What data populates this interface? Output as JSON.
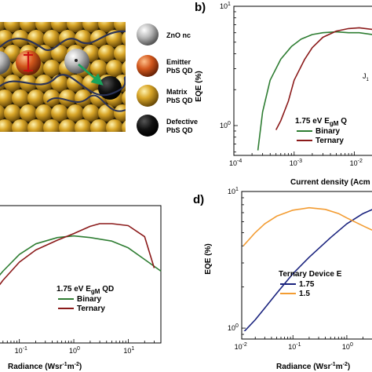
{
  "panel_letters": {
    "b": "b)",
    "d": "d)"
  },
  "schematic": {
    "legend": [
      {
        "label": "ZnO nc",
        "color": "#b8b8b8"
      },
      {
        "label": "Emitter PbS QD",
        "label_lines": [
          "Emitter",
          "PbS QD"
        ],
        "color": "#c9561f"
      },
      {
        "label": "Matrix PbS QD",
        "label_lines": [
          "Matrix",
          "PbS QD"
        ],
        "color": "#d4a52a"
      },
      {
        "label": "Defective PbS QD",
        "label_lines": [
          "Defective",
          "PbS QD"
        ],
        "color": "#111111"
      }
    ]
  },
  "chart_data": [
    {
      "id": "b",
      "type": "line",
      "xlabel": "Current density (Acm",
      "ylabel": "EQE (%)",
      "xscale": "log",
      "yscale": "log",
      "xticks": [
        {
          "value": 0.0001,
          "base": "10",
          "exp": "-4"
        },
        {
          "value": 0.001,
          "base": "10",
          "exp": "-3"
        },
        {
          "value": 0.01,
          "base": "10",
          "exp": "-2"
        }
      ],
      "yticks": [
        {
          "value": 1,
          "base": "10",
          "exp": "0"
        },
        {
          "value": 10,
          "base": "10",
          "exp": "1"
        }
      ],
      "legend_title": {
        "main": "1.75 eV E",
        "sub": "gM",
        "tail": " Q"
      },
      "legend_labels": [
        "Binary",
        "Ternary"
      ],
      "annotation": {
        "main": "J",
        "sub": "1"
      },
      "series": [
        {
          "name": "Binary",
          "color": "#2e7d32",
          "x": [
            0.00025,
            0.0003,
            0.0004,
            0.0006,
            0.0009,
            0.0013,
            0.002,
            0.003,
            0.005,
            0.008,
            0.012,
            0.02,
            0.03
          ],
          "y": [
            0.62,
            1.3,
            2.4,
            3.6,
            4.6,
            5.3,
            5.8,
            6.0,
            6.1,
            6.0,
            6.0,
            5.8,
            5.5
          ]
        },
        {
          "name": "Ternary",
          "color": "#8b1a1a",
          "x": [
            0.0005,
            0.0006,
            0.0008,
            0.001,
            0.0015,
            0.002,
            0.003,
            0.005,
            0.008,
            0.012,
            0.02,
            0.03
          ],
          "y": [
            0.92,
            1.1,
            1.6,
            2.4,
            3.6,
            4.5,
            5.5,
            6.2,
            6.5,
            6.6,
            6.4,
            6.0
          ]
        }
      ]
    },
    {
      "id": "c",
      "type": "line",
      "xlabel": "Radiance (Wsr",
      "xlabel_parts": {
        "main": "Radiance (Wsr",
        "sup1": "-1",
        "mid": "m",
        "sup2": "-2",
        "end": ")"
      },
      "xscale": "log",
      "yscale": "log",
      "xticks": [
        {
          "value": 0.1,
          "base": "10",
          "exp": "-1"
        },
        {
          "value": 1,
          "base": "10",
          "exp": "0"
        },
        {
          "value": 10,
          "base": "10",
          "exp": "1"
        }
      ],
      "legend_title": {
        "main": "1.75 eV E",
        "sub": "gM",
        "tail": " QD"
      },
      "legend_labels": [
        "Binary",
        "Ternary"
      ],
      "series": [
        {
          "name": "Binary",
          "color": "#2e7d32",
          "x": [
            0.01,
            0.02,
            0.05,
            0.1,
            0.2,
            0.5,
            1,
            2,
            5,
            10,
            20,
            40
          ],
          "y": [
            1.2,
            1.8,
            3.0,
            4.2,
            5.2,
            5.9,
            6.1,
            5.9,
            5.5,
            4.8,
            3.8,
            3.0
          ]
        },
        {
          "name": "Ternary",
          "color": "#8b1a1a",
          "x": [
            0.01,
            0.02,
            0.05,
            0.1,
            0.2,
            0.5,
            1,
            2,
            3,
            5,
            10,
            20,
            30
          ],
          "y": [
            0.9,
            1.4,
            2.5,
            3.6,
            4.6,
            5.6,
            6.4,
            7.4,
            7.8,
            7.8,
            7.5,
            6.0,
            3.2
          ]
        }
      ]
    },
    {
      "id": "d",
      "type": "line",
      "xlabel": "Radiance (Wsr",
      "xlabel_parts": {
        "main": "Radiance (Wsr",
        "sup1": "-1",
        "mid": "m",
        "sup2": "-2",
        "end": ")"
      },
      "ylabel": "EQE (%)",
      "xscale": "log",
      "yscale": "log",
      "xticks": [
        {
          "value": 0.01,
          "base": "10",
          "exp": "-2"
        },
        {
          "value": 0.1,
          "base": "10",
          "exp": "-1"
        },
        {
          "value": 1,
          "base": "10",
          "exp": "0"
        }
      ],
      "yticks": [
        {
          "value": 1,
          "base": "10",
          "exp": "0"
        },
        {
          "value": 10,
          "base": "10",
          "exp": "1"
        }
      ],
      "legend_title": {
        "main": "Ternary Device E"
      },
      "legend_labels": [
        "1.75",
        "1.5"
      ],
      "series": [
        {
          "name": "1.75",
          "color": "#1a237e",
          "x": [
            0.012,
            0.02,
            0.03,
            0.05,
            0.1,
            0.2,
            0.5,
            1,
            2,
            3
          ],
          "y": [
            0.93,
            1.15,
            1.4,
            1.8,
            2.5,
            3.3,
            4.6,
            5.8,
            6.9,
            7.4
          ]
        },
        {
          "name": "1.5",
          "color": "#f39c32",
          "x": [
            0.012,
            0.02,
            0.03,
            0.05,
            0.1,
            0.2,
            0.4,
            0.7,
            1,
            2,
            3
          ],
          "y": [
            4.0,
            5.0,
            5.8,
            6.6,
            7.3,
            7.6,
            7.4,
            6.9,
            6.4,
            5.6,
            5.2
          ]
        }
      ]
    }
  ]
}
